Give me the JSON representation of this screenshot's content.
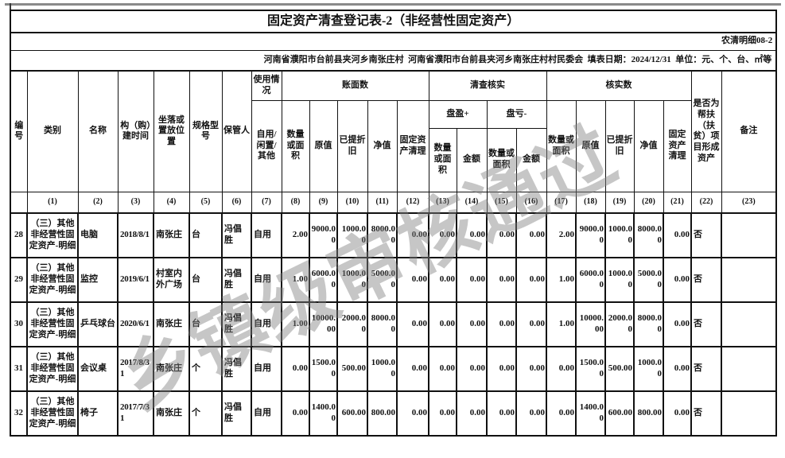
{
  "document": {
    "title": "固定资产清查登记表-2（非经营性固定资产）",
    "form_code": "农清明细08-2",
    "info_line": "河南省濮阳市台前县夹河乡南张庄村  河南省濮阳市台前县夹河乡南张庄村村民委会  填表日期：2024/12/31  单位：元、个、台、㎡等",
    "watermark": "乡镇级审核通过"
  },
  "table": {
    "headers": {
      "no": "编号",
      "category": "类别",
      "name": "名称",
      "build_time": "构（购）建时间",
      "location": "坐落或置放位置",
      "spec_model": "规格型号",
      "keeper": "保管人",
      "usage": "使用情况",
      "usage_options": "自用/闲置/其他",
      "book_group": "账面数",
      "check_group": "清查核实",
      "verified_group": "核实数",
      "surplus": "盘盈+",
      "deficit": "盘亏-",
      "qty_or_area": "数量或面积",
      "original_value": "原值",
      "depreciation": "已提折旧",
      "net_value": "净值",
      "asset_liquidation": "固定资产清理",
      "amount": "金额",
      "poverty_project": "是否为帮扶（扶贫）项目形成资产",
      "remark": "备注"
    },
    "column_numbers": [
      "",
      "(1)",
      "(2)",
      "(3)",
      "(4)",
      "(5)",
      "(6)",
      "(7)",
      "(8)",
      "(9)",
      "(10)",
      "(11)",
      "(12)",
      "(13)",
      "(14)",
      "(15)",
      "(16)",
      "(17)",
      "(18)",
      "(19)",
      "(20)",
      "(21)",
      "(22)",
      "(23)"
    ],
    "rows": [
      {
        "cells": [
          "28",
          "（三）其他非经营性固定资产-明细",
          "电脑",
          "2018/8/1",
          "南张庄",
          "台",
          "冯倡胜",
          "自用",
          "2.00",
          "9000.00",
          "1000.00",
          "8000.00",
          "0.00",
          "0.00",
          "0.00",
          "0.00",
          "0.00",
          "2.00",
          "9000.00",
          "1000.00",
          "8000.00",
          "0.00",
          "否",
          ""
        ]
      },
      {
        "cells": [
          "29",
          "（三）其他非经营性固定资产-明细",
          "监控",
          "2019/6/1",
          "村室内外广场",
          "台",
          "冯倡胜",
          "自用",
          "1.00",
          "6000.00",
          "1000.00",
          "5000.00",
          "0.00",
          "0.00",
          "0.00",
          "0.00",
          "0.00",
          "1.00",
          "6000.00",
          "1000.00",
          "5000.00",
          "0.00",
          "否",
          ""
        ]
      },
      {
        "cells": [
          "30",
          "（三）其他非经营性固定资产-明细",
          "乒乓球台",
          "2020/6/1",
          "南张庄",
          "台",
          "冯倡胜",
          "自用",
          "1.00",
          "10000.00",
          "2000.00",
          "8000.00",
          "0.00",
          "0.00",
          "0.00",
          "0.00",
          "0.00",
          "1.00",
          "10000.00",
          "2000.00",
          "8000.00",
          "0.00",
          "否",
          ""
        ]
      },
      {
        "cells": [
          "31",
          "（三）其他非经营性固定资产-明细",
          "会议桌",
          "2017/8/31",
          "南张庄",
          "个",
          "冯倡胜",
          "自用",
          "0.00",
          "1500.00",
          "500.00",
          "1000.00",
          "0.00",
          "0.00",
          "0.00",
          "0.00",
          "0.00",
          "0.00",
          "1500.00",
          "500.00",
          "1000.00",
          "0.00",
          "否",
          ""
        ]
      },
      {
        "cells": [
          "32",
          "（三）其他非经营性固定资产-明细",
          "椅子",
          "2017/7/31",
          "南张庄",
          "个",
          "冯倡胜",
          "自用",
          "0.00",
          "1400.00",
          "600.00",
          "800.00",
          "0.00",
          "0.00",
          "0.00",
          "0.00",
          "0.00",
          "0.00",
          "1400.00",
          "600.00",
          "800.00",
          "0.00",
          "否",
          ""
        ]
      }
    ]
  }
}
